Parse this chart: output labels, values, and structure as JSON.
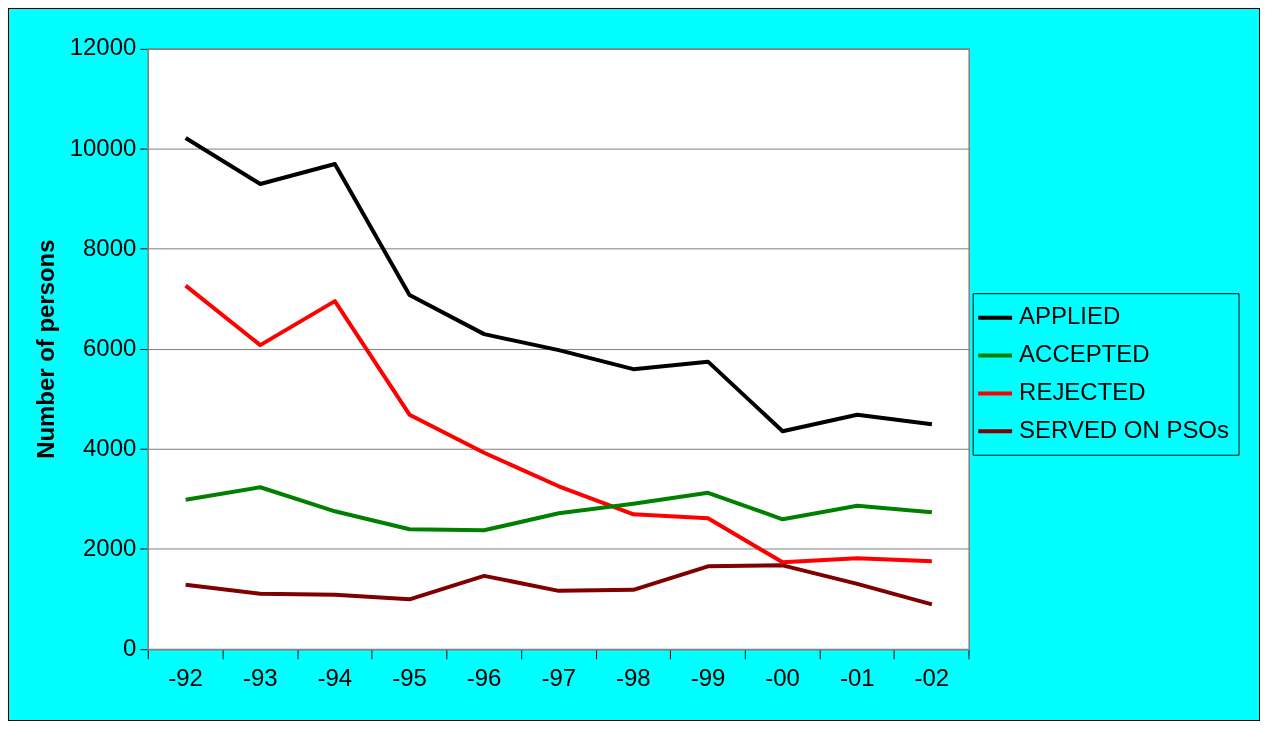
{
  "chart_data": {
    "type": "line",
    "ylabel": "Number of persons",
    "categories": [
      "-92",
      "-93",
      "-94",
      "-95",
      "-96",
      "-97",
      "-98",
      "-99",
      "-00",
      "-01",
      "-02"
    ],
    "series": [
      {
        "name": "APPLIED",
        "color": "#000000",
        "values": [
          10220,
          9300,
          9700,
          7080,
          6300,
          5980,
          5600,
          5750,
          4360,
          4690,
          4500
        ]
      },
      {
        "name": "ACCEPTED",
        "color": "#008000",
        "values": [
          2990,
          3240,
          2760,
          2400,
          2380,
          2720,
          2910,
          3130,
          2600,
          2870,
          2740
        ]
      },
      {
        "name": "REJECTED",
        "color": "#ff0000",
        "values": [
          7270,
          6080,
          6960,
          4690,
          3930,
          3260,
          2700,
          2620,
          1740,
          1820,
          1760
        ]
      },
      {
        "name": "SERVED ON PSOs",
        "color": "#800000",
        "values": [
          1290,
          1110,
          1090,
          1000,
          1470,
          1170,
          1190,
          1660,
          1680,
          1310,
          900
        ]
      }
    ],
    "ylim": [
      0,
      12000
    ],
    "yticks": [
      0,
      2000,
      4000,
      6000,
      8000,
      10000,
      12000
    ],
    "grid": "y",
    "legend": "right",
    "marker": "none",
    "line_style": "solid"
  }
}
